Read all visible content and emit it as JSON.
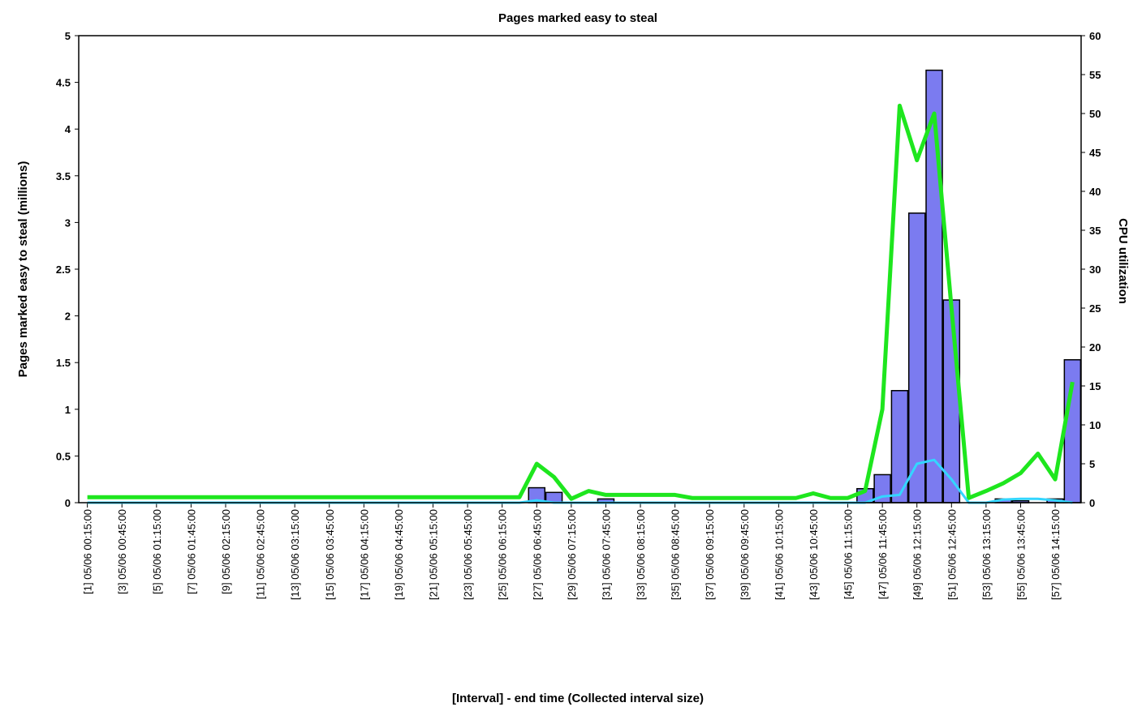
{
  "chart_data": {
    "type": "bar",
    "title": "Pages marked easy to steal",
    "x_label": "[Interval] - end time (Collected interval size)",
    "y_label": "Pages marked easy to steal (millions)",
    "y2_label": "CPU utilization",
    "categories": [
      "[1] 05/06 00:15:00",
      null,
      "[3] 05/06 00:45:00",
      null,
      "[5] 05/06 01:15:00",
      null,
      "[7] 05/06 01:45:00",
      null,
      "[9] 05/06 02:15:00",
      null,
      "[11] 05/06 02:45:00",
      null,
      "[13] 05/06 03:15:00",
      null,
      "[15] 05/06 03:45:00",
      null,
      "[17] 05/06 04:15:00",
      null,
      "[19] 05/06 04:45:00",
      null,
      "[21] 05/06 05:15:00",
      null,
      "[23] 05/06 05:45:00",
      null,
      "[25] 05/06 06:15:00",
      null,
      "[27] 05/06 06:45:00",
      null,
      "[29] 05/06 07:15:00",
      null,
      "[31] 05/06 07:45:00",
      null,
      "[33] 05/06 08:15:00",
      null,
      "[35] 05/06 08:45:00",
      null,
      "[37] 05/06 09:15:00",
      null,
      "[39] 05/06 09:45:00",
      null,
      "[41] 05/06 10:15:00",
      null,
      "[43] 05/06 10:45:00",
      null,
      "[45] 05/06 11:15:00",
      null,
      "[47] 05/06 11:45:00",
      null,
      "[49] 05/06 12:15:00",
      null,
      "[51] 05/06 12:45:00",
      null,
      "[53] 05/06 13:15:00",
      null,
      "[55] 05/06 13:45:00",
      null,
      "[57] 05/06 14:15:00",
      null
    ],
    "series": [
      {
        "type": "bar",
        "axis": "y",
        "color": "#7b7bf0",
        "values": [
          0,
          0,
          0,
          0,
          0,
          0,
          0,
          0,
          0,
          0,
          0,
          0,
          0,
          0,
          0,
          0,
          0,
          0,
          0,
          0,
          0,
          0,
          0,
          0,
          0,
          0,
          0.16,
          0.11,
          0,
          0,
          0.04,
          0,
          0,
          0,
          0,
          0,
          0,
          0,
          0,
          0,
          0,
          0,
          0,
          0,
          0,
          0.15,
          0.3,
          1.2,
          3.1,
          4.63,
          2.17,
          0,
          0,
          0.04,
          0.02,
          0,
          0.04,
          1.53
        ]
      },
      {
        "type": "line",
        "axis": "y2",
        "color": "#1ee61e",
        "values": [
          0.7,
          0.7,
          0.7,
          0.7,
          0.7,
          0.7,
          0.7,
          0.7,
          0.7,
          0.7,
          0.7,
          0.7,
          0.7,
          0.7,
          0.7,
          0.7,
          0.7,
          0.7,
          0.7,
          0.7,
          0.7,
          0.7,
          0.7,
          0.7,
          0.7,
          0.7,
          5,
          3.3,
          0.5,
          1.5,
          1,
          1,
          1,
          1,
          1,
          0.6,
          0.6,
          0.6,
          0.6,
          0.6,
          0.6,
          0.6,
          1.2,
          0.6,
          0.6,
          1.5,
          12,
          51,
          44,
          50,
          25,
          0.6,
          1.5,
          2.5,
          3.8,
          6.3,
          3,
          15.5
        ]
      },
      {
        "type": "line",
        "axis": "y2",
        "color": "#33d6ff",
        "values": [
          0,
          0,
          0,
          0,
          0,
          0,
          0,
          0,
          0,
          0,
          0,
          0,
          0,
          0,
          0,
          0,
          0,
          0,
          0,
          0,
          0,
          0,
          0,
          0,
          0,
          0,
          0.3,
          0,
          0,
          0,
          0,
          0,
          0,
          0,
          0,
          0,
          0,
          0,
          0,
          0,
          0,
          0,
          0,
          0,
          0,
          0,
          0.8,
          1,
          5,
          5.5,
          3,
          0,
          0,
          0.4,
          0.5,
          0.5,
          0.3,
          0
        ]
      }
    ],
    "ylim": [
      0,
      5
    ],
    "yticks": [
      0,
      0.5,
      1,
      1.5,
      2,
      2.5,
      3,
      3.5,
      4,
      4.5,
      5
    ],
    "y2lim": [
      0,
      60
    ],
    "y2ticks": [
      0,
      5,
      10,
      15,
      20,
      25,
      30,
      35,
      40,
      45,
      50,
      55,
      60
    ]
  }
}
